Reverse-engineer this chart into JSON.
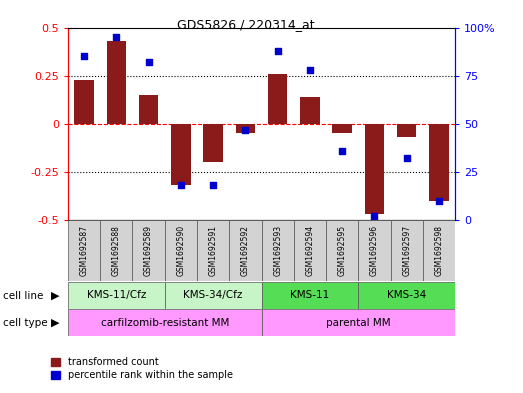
{
  "title": "GDS5826 / 220314_at",
  "samples": [
    "GSM1692587",
    "GSM1692588",
    "GSM1692589",
    "GSM1692590",
    "GSM1692591",
    "GSM1692592",
    "GSM1692593",
    "GSM1692594",
    "GSM1692595",
    "GSM1692596",
    "GSM1692597",
    "GSM1692598"
  ],
  "transformed_count": [
    0.23,
    0.43,
    0.15,
    -0.32,
    -0.2,
    -0.05,
    0.26,
    0.14,
    -0.05,
    -0.47,
    -0.07,
    -0.4
  ],
  "percentile_rank": [
    85,
    95,
    82,
    18,
    18,
    47,
    88,
    78,
    36,
    2,
    32,
    10
  ],
  "cell_lines": [
    {
      "label": "KMS-11/Cfz",
      "start": 0,
      "end": 3,
      "color": "#c8f5c8"
    },
    {
      "label": "KMS-34/Cfz",
      "start": 3,
      "end": 6,
      "color": "#c8f5c8"
    },
    {
      "label": "KMS-11",
      "start": 6,
      "end": 9,
      "color": "#55dd55"
    },
    {
      "label": "KMS-34",
      "start": 9,
      "end": 12,
      "color": "#55dd55"
    }
  ],
  "cell_types": [
    {
      "label": "carfilzomib-resistant MM",
      "start": 0,
      "end": 6
    },
    {
      "label": "parental MM",
      "start": 6,
      "end": 12
    }
  ],
  "cell_type_color": "#FF99FF",
  "bar_color": "#8B1A1A",
  "dot_color": "#0000CC",
  "ylim_left": [
    -0.5,
    0.5
  ],
  "ylim_right": [
    0,
    100
  ],
  "yticks_left": [
    -0.5,
    -0.25,
    0.0,
    0.25,
    0.5
  ],
  "yticklabels_left": [
    "-0.5",
    "-0.25",
    "0",
    "0.25",
    "0.5"
  ],
  "yticks_right": [
    0,
    25,
    50,
    75,
    100
  ],
  "yticklabels_right": [
    "0",
    "25",
    "50",
    "75",
    "100%"
  ],
  "dotted_lines": [
    -0.25,
    0.25
  ],
  "zero_line": 0.0,
  "sample_box_color": "#d3d3d3",
  "background_color": "#ffffff",
  "legend_red_label": "transformed count",
  "legend_blue_label": "percentile rank within the sample"
}
